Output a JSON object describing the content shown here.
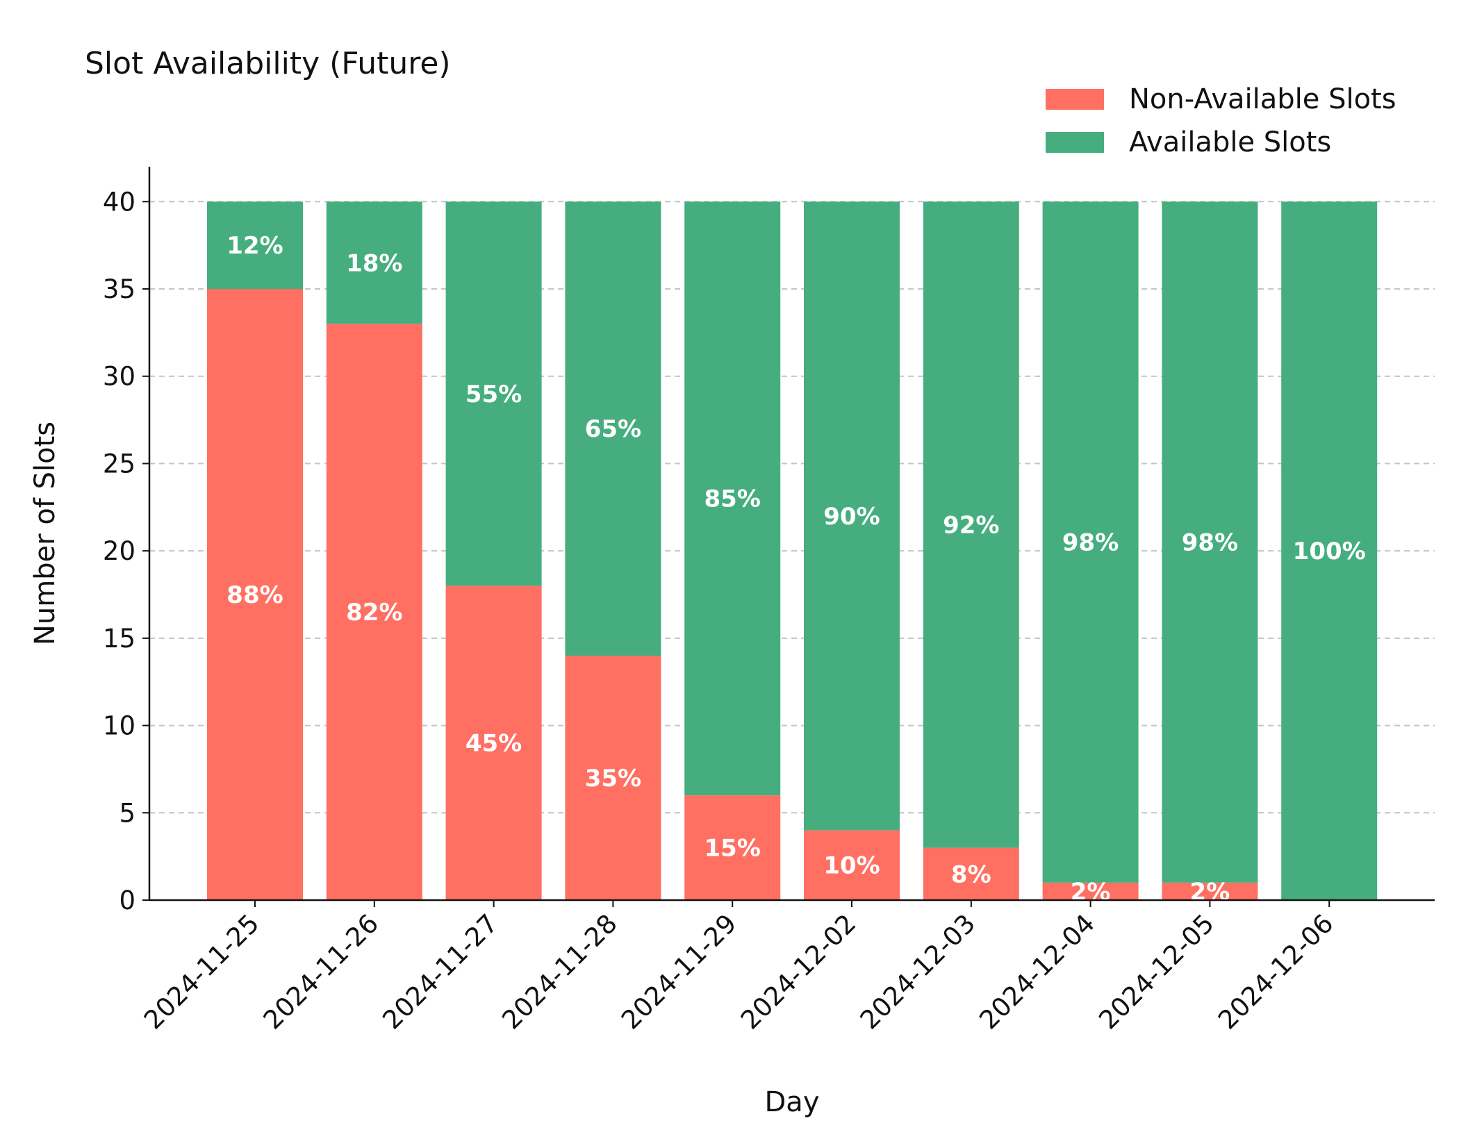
{
  "chart_data": {
    "type": "bar",
    "stacked": true,
    "title": "Slot Availability (Future)",
    "xlabel": "Day",
    "ylabel": "Number of Slots",
    "ylim": [
      0,
      42
    ],
    "yticks": [
      0,
      5,
      10,
      15,
      20,
      25,
      30,
      35,
      40
    ],
    "grid": "y-dashed",
    "legend_position": "top-right",
    "categories": [
      "2024-11-25",
      "2024-11-26",
      "2024-11-27",
      "2024-11-28",
      "2024-11-29",
      "2024-12-02",
      "2024-12-03",
      "2024-12-04",
      "2024-12-05",
      "2024-12-06"
    ],
    "series": [
      {
        "name": "Non-Available Slots",
        "color": "#ff7063",
        "values": [
          35,
          33,
          18,
          14,
          6,
          4,
          3,
          1,
          1,
          0
        ],
        "labels": [
          "88%",
          "82%",
          "45%",
          "35%",
          "15%",
          "10%",
          "8%",
          "2%",
          "2%",
          ""
        ]
      },
      {
        "name": "Available Slots",
        "color": "#46ae7e",
        "values": [
          5,
          7,
          22,
          26,
          34,
          36,
          37,
          39,
          39,
          40
        ],
        "labels": [
          "12%",
          "18%",
          "55%",
          "65%",
          "85%",
          "90%",
          "92%",
          "98%",
          "98%",
          "100%"
        ]
      }
    ]
  }
}
